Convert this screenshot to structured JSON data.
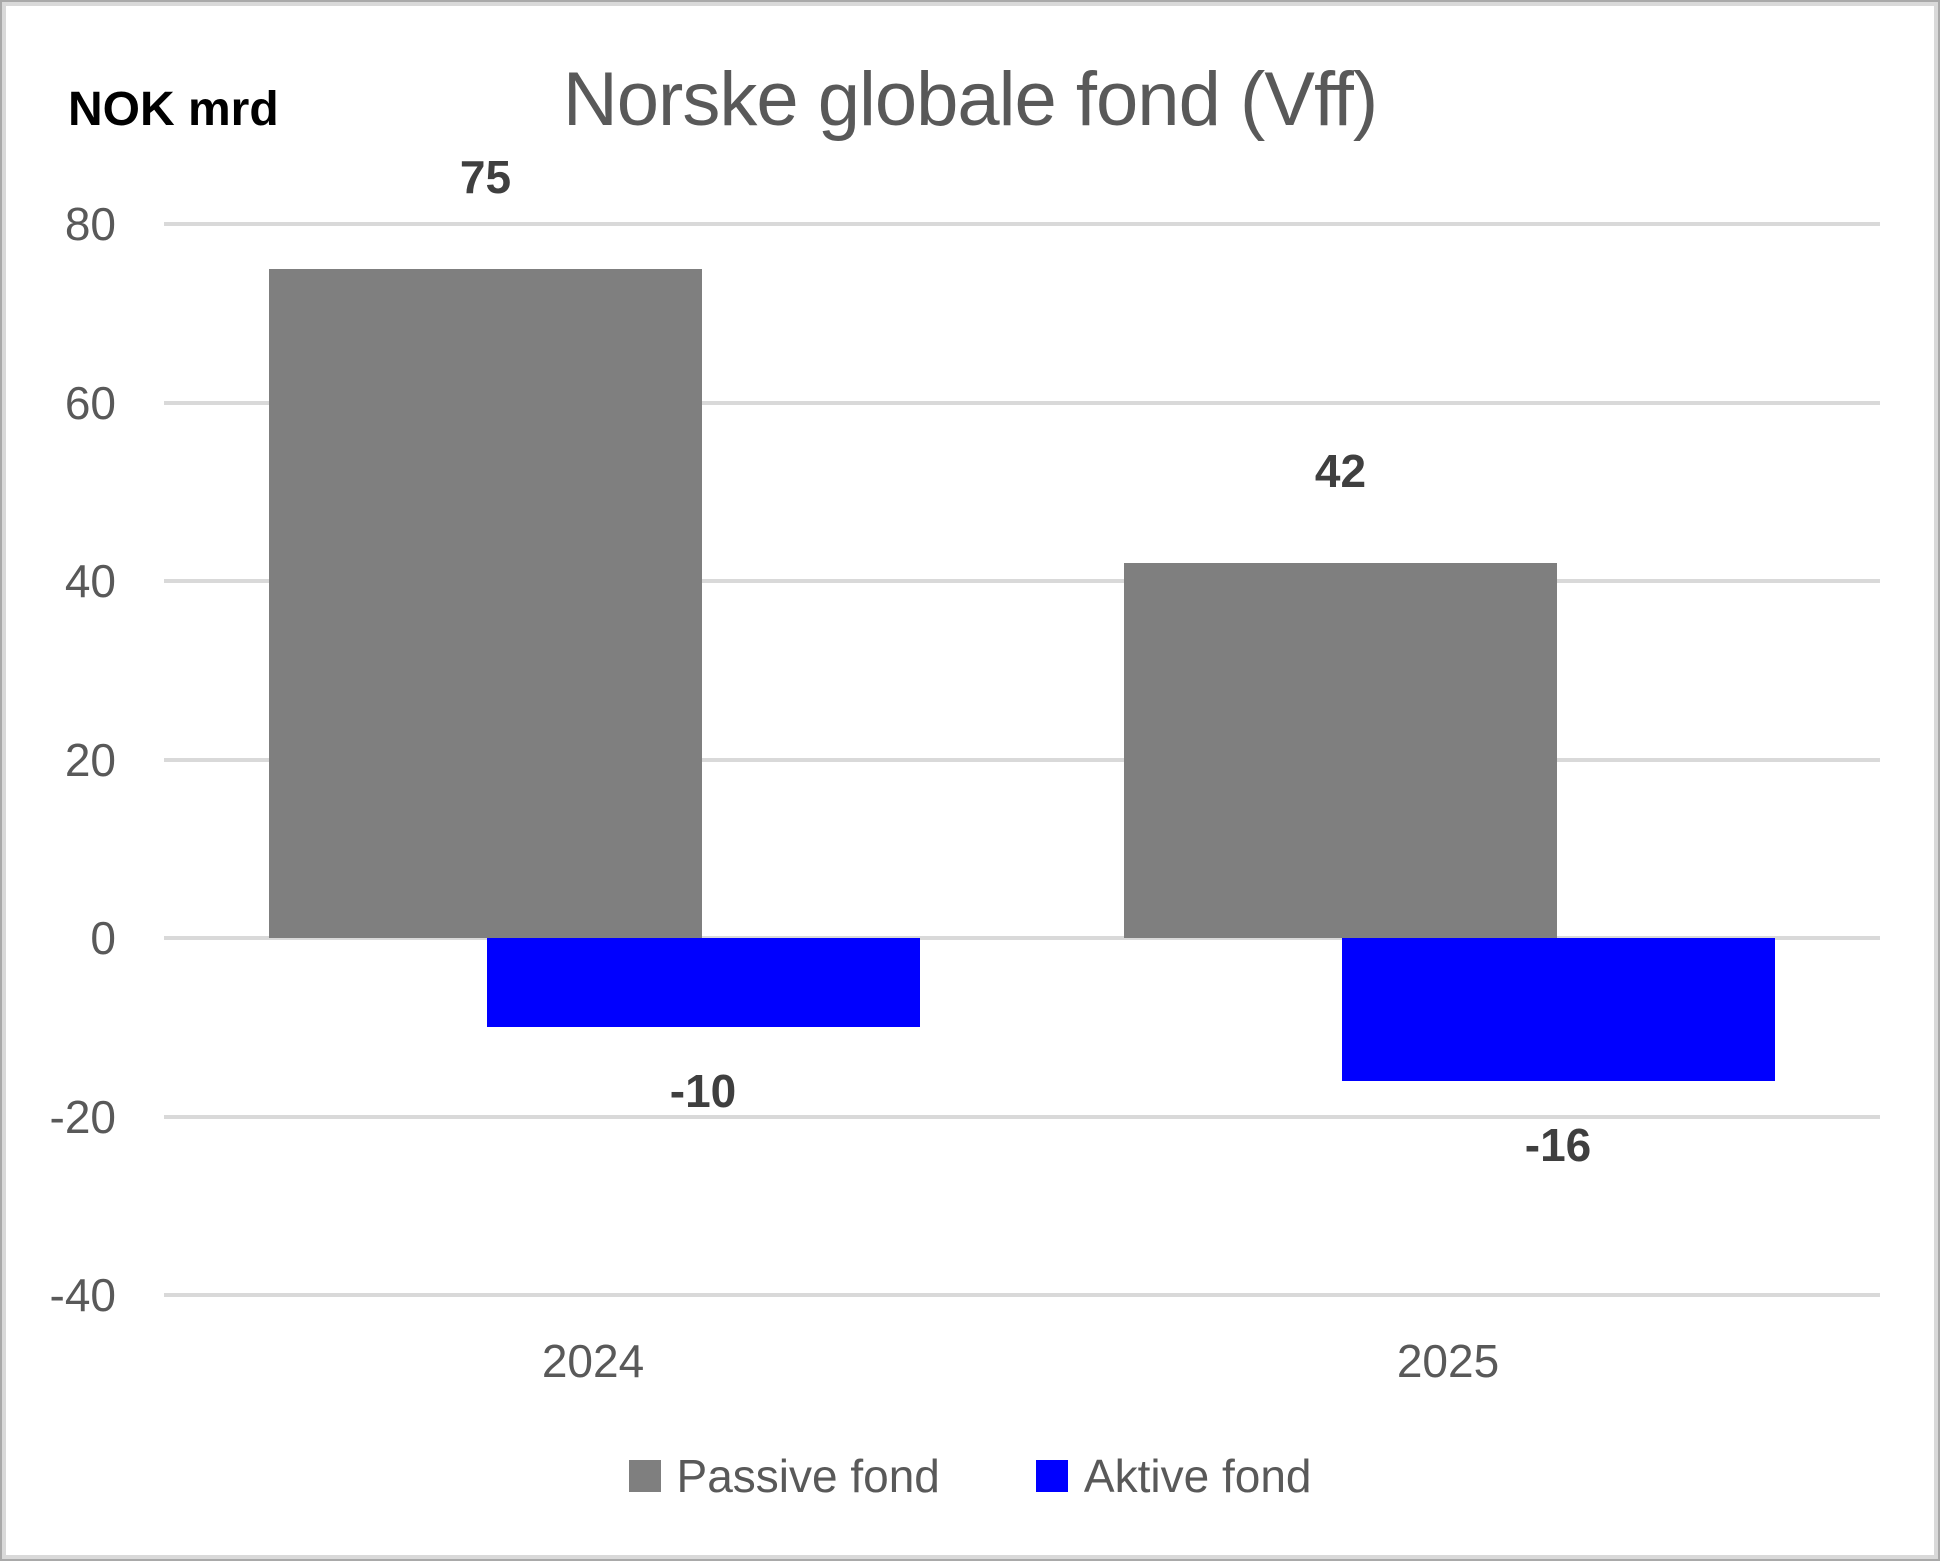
{
  "header": {
    "title": "Norske globale fond (Vff)",
    "axis_unit_label": "NOK mrd"
  },
  "chart_data": {
    "type": "bar",
    "title": "Norske globale fond (Vff)",
    "ylabel": "NOK mrd",
    "categories": [
      "2024",
      "2025"
    ],
    "series": [
      {
        "name": "Passive fond",
        "color": "#7F7F7F",
        "values": [
          75,
          42
        ]
      },
      {
        "name": "Aktive fond",
        "color": "#0000FF",
        "values": [
          -10,
          -16
        ]
      }
    ],
    "data_labels": {
      "2024": {
        "Passive fond": "75",
        "Aktive fond": "-10"
      },
      "2025": {
        "Passive fond": "42",
        "Aktive fond": "-16"
      }
    },
    "yticks": [
      80,
      60,
      40,
      20,
      0,
      -20,
      -40
    ],
    "ylim": [
      -40,
      80
    ],
    "grid": true,
    "legend_position": "bottom"
  },
  "colors": {
    "title_text": "#595959",
    "axis_text": "#595959",
    "data_label_text": "#3f3f3f",
    "gridline": "#d9d9d9",
    "passive_bar": "#7F7F7F",
    "active_bar": "#0000FF",
    "frame_border": "#d9d9d9"
  }
}
